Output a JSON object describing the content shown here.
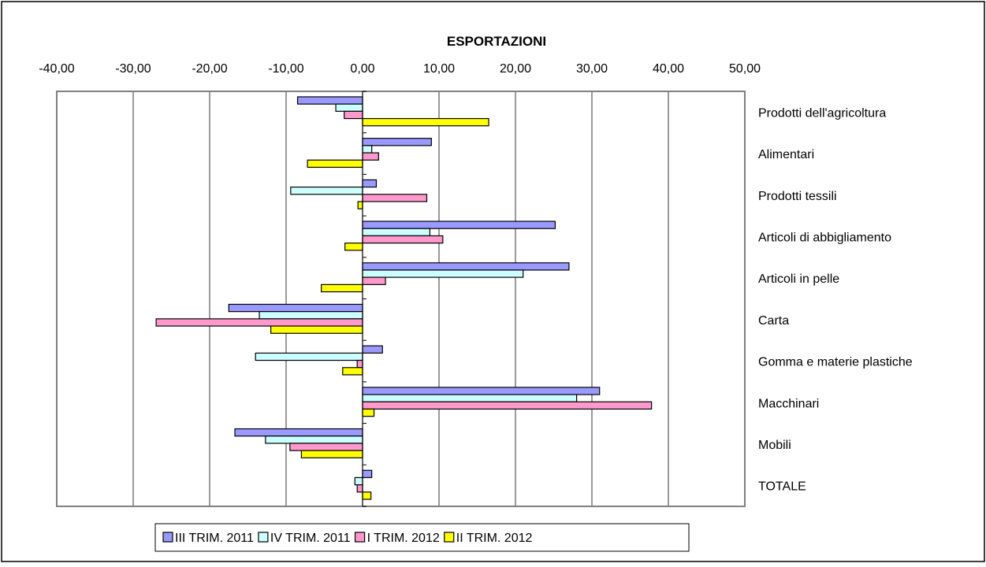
{
  "chart_data": {
    "type": "bar",
    "orientation": "horizontal",
    "title": "ESPORTAZIONI",
    "xlim": [
      -40,
      50
    ],
    "x_ticks": [
      "-40,00",
      "-30,00",
      "-20,00",
      "-10,00",
      "0,00",
      "10,00",
      "20,00",
      "30,00",
      "40,00",
      "50,00"
    ],
    "x_tick_values": [
      -40,
      -30,
      -20,
      -10,
      0,
      10,
      20,
      30,
      40,
      50
    ],
    "grid": true,
    "legend_position": "bottom",
    "categories": [
      "Prodotti dell'agricoltura",
      "Alimentari",
      "Prodotti tessili",
      "Articoli di abbigliamento",
      "Articoli in pelle",
      "Carta",
      "Gomma e materie plastiche",
      "Macchinari",
      "Mobili",
      "TOTALE"
    ],
    "series": [
      {
        "name": "III TRIM. 2011",
        "color": "#9999ff",
        "values": [
          -8.5,
          9.0,
          1.8,
          25.2,
          27.0,
          -17.5,
          2.6,
          31.0,
          -16.7,
          1.2
        ]
      },
      {
        "name": "IV TRIM. 2011",
        "color": "#ccffff",
        "values": [
          -3.5,
          1.2,
          -9.4,
          8.8,
          21.0,
          -13.5,
          -14.0,
          28.0,
          -12.7,
          -1.0
        ]
      },
      {
        "name": "I TRIM. 2012",
        "color": "#ff99cc",
        "values": [
          -2.4,
          2.1,
          8.4,
          10.5,
          3.0,
          -27.0,
          -0.7,
          37.8,
          -9.5,
          -0.7
        ]
      },
      {
        "name": "II TRIM. 2012",
        "color": "#ffff00",
        "values": [
          16.5,
          -7.2,
          -0.6,
          -2.3,
          -5.4,
          -12.0,
          -2.6,
          1.5,
          -8.0,
          1.1
        ]
      }
    ]
  }
}
